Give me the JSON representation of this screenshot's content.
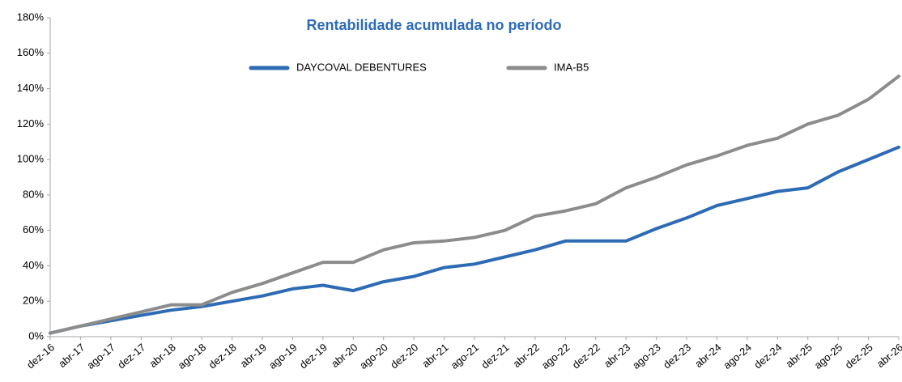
{
  "chart_data": {
    "type": "line",
    "title": "Rentabilidade acumulada no período",
    "categories": [
      "dez-16",
      "abr-17",
      "ago-17",
      "dez-17",
      "abr-18",
      "ago-18",
      "dez-18",
      "abr-19",
      "ago-19",
      "dez-19",
      "abr-20",
      "ago-20",
      "dez-20",
      "abr-21",
      "ago-21",
      "dez-21",
      "abr-22",
      "ago-22",
      "dez-22",
      "abr-23",
      "ago-23",
      "dez-23",
      "abr-24",
      "ago-24",
      "dez-24",
      "abr-25",
      "ago-25",
      "dez-25",
      "abr-26"
    ],
    "series": [
      {
        "name": "DAYCOVAL DEBENTURES",
        "color": "#2e6bb5",
        "values": [
          2,
          6,
          9,
          12,
          15,
          17,
          20,
          23,
          27,
          29,
          26,
          31,
          34,
          39,
          41,
          45,
          49,
          54,
          54,
          54,
          61,
          67,
          74,
          78,
          82,
          84,
          93,
          100,
          107
        ]
      },
      {
        "name": "IMA-B5",
        "color": "#8c8c8c",
        "values": [
          2,
          6,
          10,
          14,
          18,
          18,
          25,
          30,
          36,
          42,
          42,
          49,
          53,
          54,
          56,
          60,
          68,
          71,
          75,
          84,
          90,
          97,
          102,
          108,
          112,
          120,
          125,
          134,
          147
        ]
      }
    ],
    "ylim": [
      0,
      180
    ],
    "yticks": [
      {
        "value": 0,
        "label": "0%"
      },
      {
        "value": 20,
        "label": "20%"
      },
      {
        "value": 40,
        "label": "40%"
      },
      {
        "value": 60,
        "label": "60%"
      },
      {
        "value": 80,
        "label": "80%"
      },
      {
        "value": 100,
        "label": "100%"
      },
      {
        "value": 120,
        "label": "120%"
      },
      {
        "value": 140,
        "label": "140%"
      },
      {
        "value": 160,
        "label": "160%"
      },
      {
        "value": 180,
        "label": "180%"
      }
    ],
    "grid": false,
    "legend": "top"
  }
}
